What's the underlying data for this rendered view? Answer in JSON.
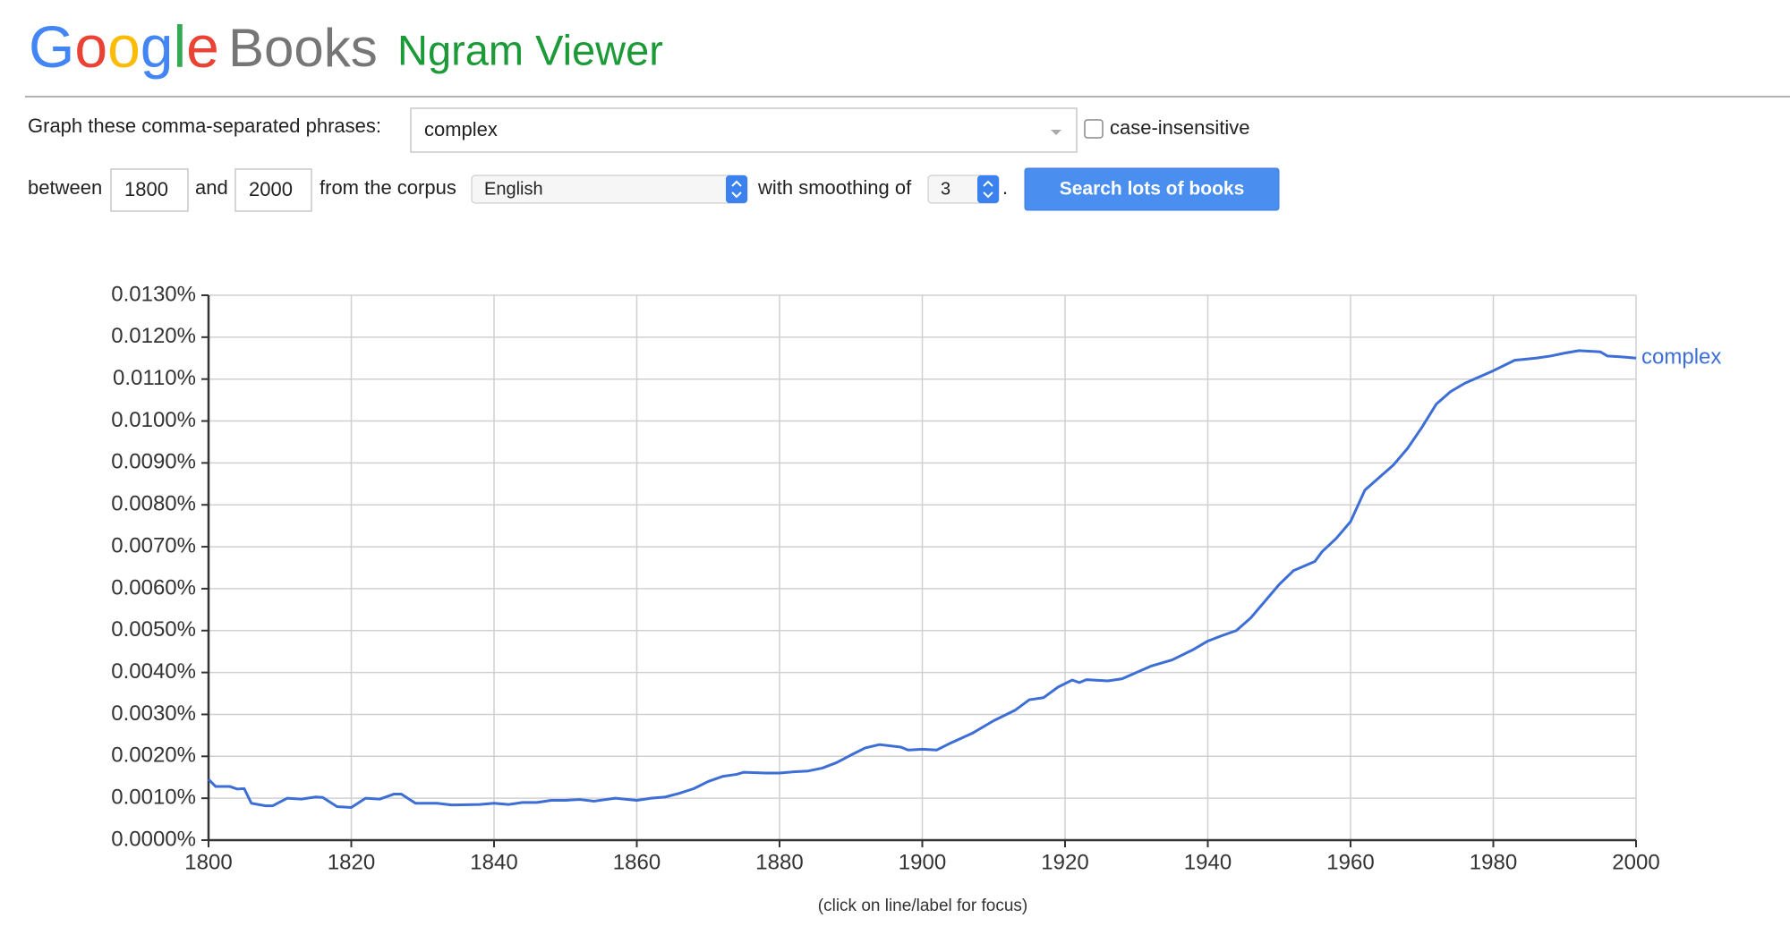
{
  "header": {
    "logo": "Google",
    "product": "Books",
    "title": "Ngram Viewer"
  },
  "form": {
    "phrases_label": "Graph these comma-separated phrases:",
    "phrases": "complex",
    "case_label": "case-insensitive",
    "between_label": "between",
    "start_year": "1800",
    "and_label": "and",
    "end_year": "2000",
    "corpus_label": "from the corpus",
    "corpus": "English",
    "smoothing_label": "with smoothing of",
    "smoothing": "3",
    "period": ".",
    "button": "Search lots of books"
  },
  "chart_data": {
    "type": "line",
    "note": "(click on line/label for focus)",
    "x": [
      1800,
      1801,
      1803,
      1804,
      1805,
      1806,
      1808,
      1809,
      1811,
      1813,
      1815,
      1816,
      1818,
      1820,
      1822,
      1824,
      1826,
      1827,
      1829,
      1832,
      1834,
      1838,
      1840,
      1842,
      1844,
      1846,
      1848,
      1850,
      1852,
      1854,
      1857,
      1860,
      1862,
      1864,
      1866,
      1868,
      1870,
      1872,
      1874,
      1875,
      1878,
      1880,
      1882,
      1884,
      1886,
      1888,
      1890,
      1892,
      1894,
      1897,
      1898,
      1900,
      1902,
      1904,
      1907,
      1910,
      1913,
      1915,
      1917,
      1919,
      1921,
      1922,
      1923,
      1926,
      1928,
      1930,
      1932,
      1935,
      1938,
      1940,
      1942,
      1944,
      1946,
      1948,
      1950,
      1952,
      1955,
      1956,
      1958,
      1960,
      1962,
      1964,
      1966,
      1968,
      1970,
      1972,
      1974,
      1976,
      1978,
      1980,
      1983,
      1986,
      1988,
      1990,
      1992,
      1995,
      1996,
      1998,
      2000
    ],
    "series": [
      {
        "name": "complex",
        "color": "#3d6ed6",
        "values": [
          0.00145,
          0.00128,
          0.00128,
          0.00122,
          0.00123,
          0.00088,
          0.00082,
          0.00082,
          0.001,
          0.00098,
          0.00103,
          0.00102,
          0.0008,
          0.00078,
          0.001,
          0.00098,
          0.0011,
          0.0011,
          0.00088,
          0.00088,
          0.00084,
          0.00085,
          0.00088,
          0.00085,
          0.0009,
          0.0009,
          0.00095,
          0.00095,
          0.00097,
          0.00093,
          0.001,
          0.00095,
          0.001,
          0.00103,
          0.00112,
          0.00123,
          0.0014,
          0.00152,
          0.00157,
          0.00162,
          0.0016,
          0.0016,
          0.00163,
          0.00165,
          0.00172,
          0.00185,
          0.00203,
          0.0022,
          0.00228,
          0.00222,
          0.00215,
          0.00217,
          0.00215,
          0.00232,
          0.00255,
          0.00285,
          0.0031,
          0.00335,
          0.0034,
          0.00365,
          0.00382,
          0.00376,
          0.00383,
          0.0038,
          0.00385,
          0.004,
          0.00415,
          0.0043,
          0.00455,
          0.00475,
          0.00488,
          0.005,
          0.0053,
          0.0057,
          0.0061,
          0.00643,
          0.00665,
          0.00688,
          0.0072,
          0.0076,
          0.00835,
          0.00865,
          0.00895,
          0.00935,
          0.00985,
          0.0104,
          0.0107,
          0.0109,
          0.01105,
          0.0112,
          0.01145,
          0.0115,
          0.01155,
          0.01162,
          0.01168,
          0.01165,
          0.01155,
          0.01153,
          0.0115
        ]
      }
    ],
    "xlim": [
      1800,
      2000
    ],
    "xticks": [
      1800,
      1820,
      1840,
      1860,
      1880,
      1900,
      1920,
      1940,
      1960,
      1980,
      2000
    ],
    "ylim": [
      0,
      0.013
    ],
    "yticks": [
      {
        "value": 0,
        "label": "0.0000%"
      },
      {
        "value": 0.001,
        "label": "0.0010%"
      },
      {
        "value": 0.002,
        "label": "0.0020%"
      },
      {
        "value": 0.003,
        "label": "0.0030%"
      },
      {
        "value": 0.004,
        "label": "0.0040%"
      },
      {
        "value": 0.005,
        "label": "0.0050%"
      },
      {
        "value": 0.006,
        "label": "0.0060%"
      },
      {
        "value": 0.007,
        "label": "0.0070%"
      },
      {
        "value": 0.008,
        "label": "0.0080%"
      },
      {
        "value": 0.009,
        "label": "0.0090%"
      },
      {
        "value": 0.01,
        "label": "0.0100%"
      },
      {
        "value": 0.011,
        "label": "0.0110%"
      },
      {
        "value": 0.012,
        "label": "0.0120%"
      },
      {
        "value": 0.013,
        "label": "0.0130%"
      }
    ],
    "grid": true
  }
}
